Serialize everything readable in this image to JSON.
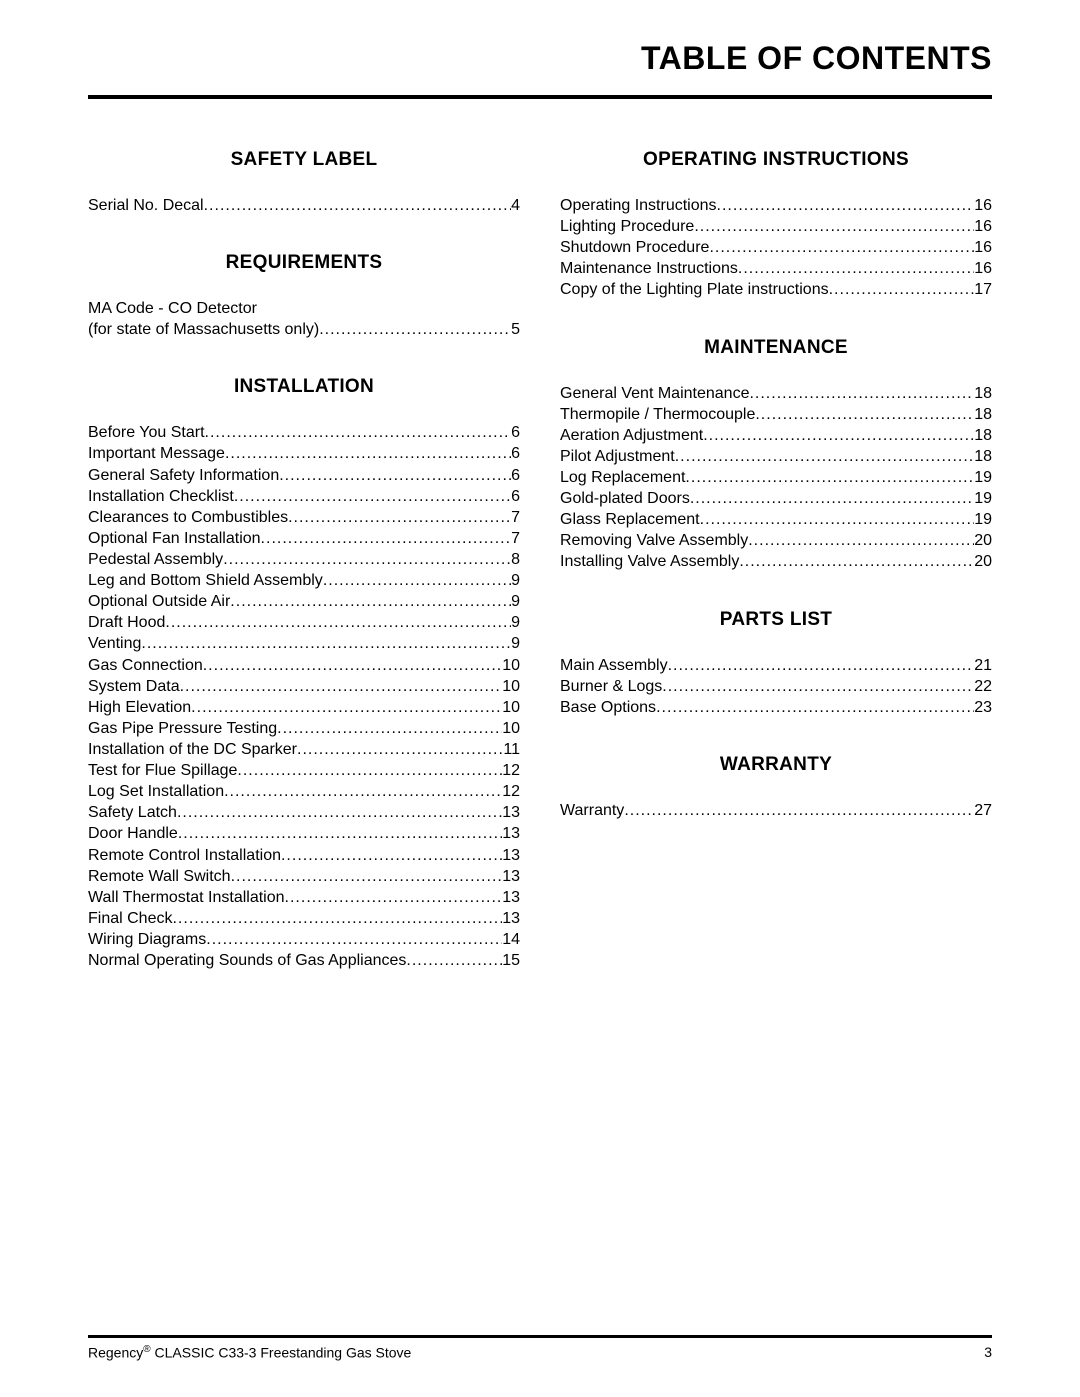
{
  "title": "TABLE OF CONTENTS",
  "footer": {
    "brand_pre": "Regency",
    "brand_post": " CLASSIC C33-3 Freestanding Gas Stove",
    "reg_mark": "®",
    "page_number": "3"
  },
  "left": [
    {
      "heading": "SAFETY LABEL",
      "entries": [
        {
          "label": "Serial No. Decal",
          "page": "4"
        }
      ]
    },
    {
      "heading": "REQUIREMENTS",
      "entries": [
        {
          "label": "MA Code - CO Detector",
          "sub": "(for state of Massachusetts only)",
          "page": "5"
        }
      ]
    },
    {
      "heading": "INSTALLATION",
      "entries": [
        {
          "label": "Before You Start",
          "page": "6"
        },
        {
          "label": "Important Message",
          "page": "6"
        },
        {
          "label": "General Safety Information",
          "page": "6"
        },
        {
          "label": "Installation Checklist",
          "page": "6"
        },
        {
          "label": "Clearances to Combustibles",
          "page": "7"
        },
        {
          "label": "Optional Fan Installation",
          "page": "7"
        },
        {
          "label": "Pedestal Assembly",
          "page": "8"
        },
        {
          "label": "Leg and Bottom Shield Assembly",
          "page": "9"
        },
        {
          "label": "Optional Outside Air",
          "page": "9"
        },
        {
          "label": "Draft Hood",
          "page": "9"
        },
        {
          "label": "Venting",
          "page": "9"
        },
        {
          "label": "Gas Connection",
          "page": "10"
        },
        {
          "label": "System Data",
          "page": "10"
        },
        {
          "label": "High Elevation",
          "page": "10"
        },
        {
          "label": "Gas Pipe Pressure Testing",
          "page": "10"
        },
        {
          "label": "Installation of the DC Sparker",
          "page": "11"
        },
        {
          "label": "Test for Flue Spillage",
          "page": "12"
        },
        {
          "label": "Log Set Installation",
          "page": "12"
        },
        {
          "label": "Safety Latch",
          "page": "13"
        },
        {
          "label": "Door Handle",
          "page": "13"
        },
        {
          "label": "Remote Control Installation",
          "page": "13"
        },
        {
          "label": "Remote Wall Switch",
          "page": "13"
        },
        {
          "label": "Wall Thermostat Installation",
          "page": "13"
        },
        {
          "label": "Final Check",
          "page": "13"
        },
        {
          "label": "Wiring Diagrams",
          "page": "14"
        },
        {
          "label": "Normal Operating Sounds of Gas Appliances",
          "page": "15"
        }
      ]
    }
  ],
  "right": [
    {
      "heading": "OPERATING INSTRUCTIONS",
      "entries": [
        {
          "label": "Operating Instructions",
          "page": "16"
        },
        {
          "label": "Lighting Procedure",
          "page": "16"
        },
        {
          "label": "Shutdown Procedure",
          "page": "16"
        },
        {
          "label": "Maintenance Instructions",
          "page": "16"
        },
        {
          "label": "Copy of the Lighting Plate instructions",
          "page": "17"
        }
      ]
    },
    {
      "heading": "MAINTENANCE",
      "entries": [
        {
          "label": "General Vent Maintenance",
          "page": "18"
        },
        {
          "label": "Thermopile / Thermocouple",
          "page": "18"
        },
        {
          "label": "Aeration Adjustment",
          "page": "18"
        },
        {
          "label": "Pilot Adjustment",
          "page": "18"
        },
        {
          "label": "Log Replacement",
          "page": "19"
        },
        {
          "label": "Gold-plated Doors",
          "page": "19"
        },
        {
          "label": "Glass Replacement",
          "page": "19"
        },
        {
          "label": "Removing Valve Assembly",
          "page": "20"
        },
        {
          "label": "Installing Valve Assembly",
          "page": "20"
        }
      ]
    },
    {
      "heading": "PARTS LIST",
      "entries": [
        {
          "label": "Main Assembly",
          "page": "21"
        },
        {
          "label": "Burner & Logs",
          "page": "22"
        },
        {
          "label": "Base Options",
          "page": "23"
        }
      ]
    },
    {
      "heading": "WARRANTY",
      "entries": [
        {
          "label": "Warranty",
          "page": "27"
        }
      ]
    }
  ]
}
